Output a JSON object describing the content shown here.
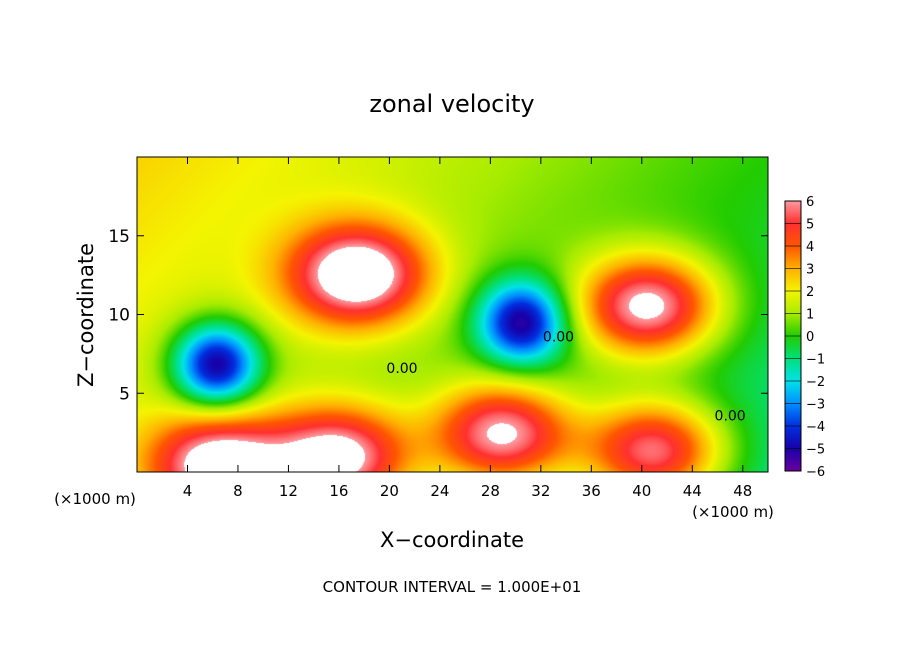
{
  "chart_data": {
    "type": "heatmap",
    "title": "zonal velocity",
    "xlabel": "X−coordinate",
    "ylabel": "Z−coordinate",
    "x_units_label": "(×1000 m)",
    "footer": "CONTOUR INTERVAL = 1.000E+01",
    "xlim": [
      0,
      50
    ],
    "ylim": [
      0,
      20
    ],
    "x_ticks": [
      4,
      8,
      12,
      16,
      20,
      24,
      28,
      32,
      36,
      40,
      44,
      48
    ],
    "y_ticks": [
      5,
      10,
      15
    ],
    "colorbar": {
      "ticks": [
        6,
        5,
        4,
        3,
        2,
        1,
        0,
        -1,
        -2,
        -3,
        -4,
        -5,
        -6
      ],
      "tick_labels": [
        "6",
        "5",
        "4",
        "3",
        "2",
        "1",
        "0",
        "−1",
        "−2",
        "−3",
        "−4",
        "−5",
        "−6"
      ],
      "range": [
        -6,
        6
      ],
      "out_of_range_color": "#ffffff"
    },
    "contour_labels": [
      {
        "text": "0.00",
        "x": 21,
        "z": 6.6
      },
      {
        "text": "0.00",
        "x": 33.4,
        "z": 8.6
      },
      {
        "text": "0.00",
        "x": 47.0,
        "z": 3.6
      }
    ],
    "features": [
      {
        "type": "max",
        "x": 17.5,
        "z": 12.5,
        "value": 6.5
      },
      {
        "type": "max",
        "x": 40.5,
        "z": 10.5,
        "value": 6.5
      },
      {
        "type": "min",
        "x": 6.3,
        "z": 6.8,
        "value": -6.5
      },
      {
        "type": "min",
        "x": 30.5,
        "z": 9.5,
        "value": -5.8
      },
      {
        "type": "max",
        "x": 16.0,
        "z": 0.9,
        "value": 6.2
      },
      {
        "type": "max",
        "x": 6.5,
        "z": 0.4,
        "value": 6.2
      },
      {
        "type": "max",
        "x": 41.0,
        "z": 1.3,
        "value": 6.2
      },
      {
        "type": "max",
        "x": 29.0,
        "z": 2.4,
        "value": 6.2
      }
    ]
  }
}
